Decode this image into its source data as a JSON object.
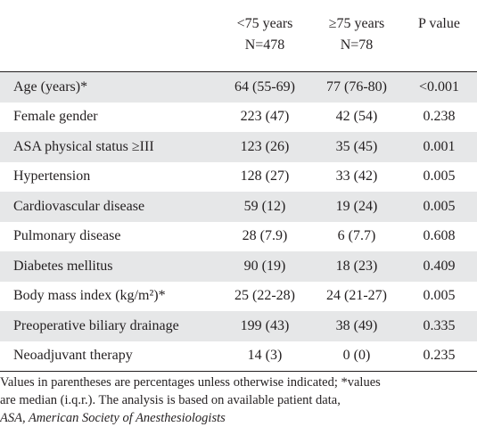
{
  "table": {
    "headers": [
      {
        "line1": "",
        "line2": ""
      },
      {
        "line1": "<75 years",
        "line2": "N=478"
      },
      {
        "line1": "≥75 years",
        "line2": "N=78"
      },
      {
        "line1": "P value",
        "line2": ""
      }
    ],
    "rows": [
      {
        "label": "Age (years)*",
        "under75": "64 (55-69)",
        "over75": "77 (76-80)",
        "p": "<0.001"
      },
      {
        "label": "Female gender",
        "under75": "223 (47)",
        "over75": "42 (54)",
        "p": "0.238"
      },
      {
        "label": "ASA physical status ≥III",
        "under75": "123 (26)",
        "over75": "35 (45)",
        "p": "0.001"
      },
      {
        "label": "Hypertension",
        "under75": "128 (27)",
        "over75": "33 (42)",
        "p": "0.005"
      },
      {
        "label": "Cardiovascular disease",
        "under75": "59 (12)",
        "over75": "19 (24)",
        "p": "0.005"
      },
      {
        "label": "Pulmonary disease",
        "under75": "28 (7.9)",
        "over75": "6 (7.7)",
        "p": "0.608"
      },
      {
        "label": "Diabetes mellitus",
        "under75": "90 (19)",
        "over75": "18 (23)",
        "p": "0.409"
      },
      {
        "label": "Body mass index (kg/m²)*",
        "under75": "25 (22-28)",
        "over75": "24 (21-27)",
        "p": "0.005"
      },
      {
        "label": "Preoperative biliary drainage",
        "under75": "199 (43)",
        "over75": "38 (49)",
        "p": "0.335"
      },
      {
        "label": "Neoadjuvant therapy",
        "under75": "14 (3)",
        "over75": "0 (0)",
        "p": "0.235"
      }
    ]
  },
  "footnote": {
    "line1": "Values in parentheses are percentages unless otherwise indicated; *values",
    "line2": "are median (i.q.r.). The analysis is based on available patient data,",
    "line3": "ASA, American Society of Anesthesiologists"
  }
}
